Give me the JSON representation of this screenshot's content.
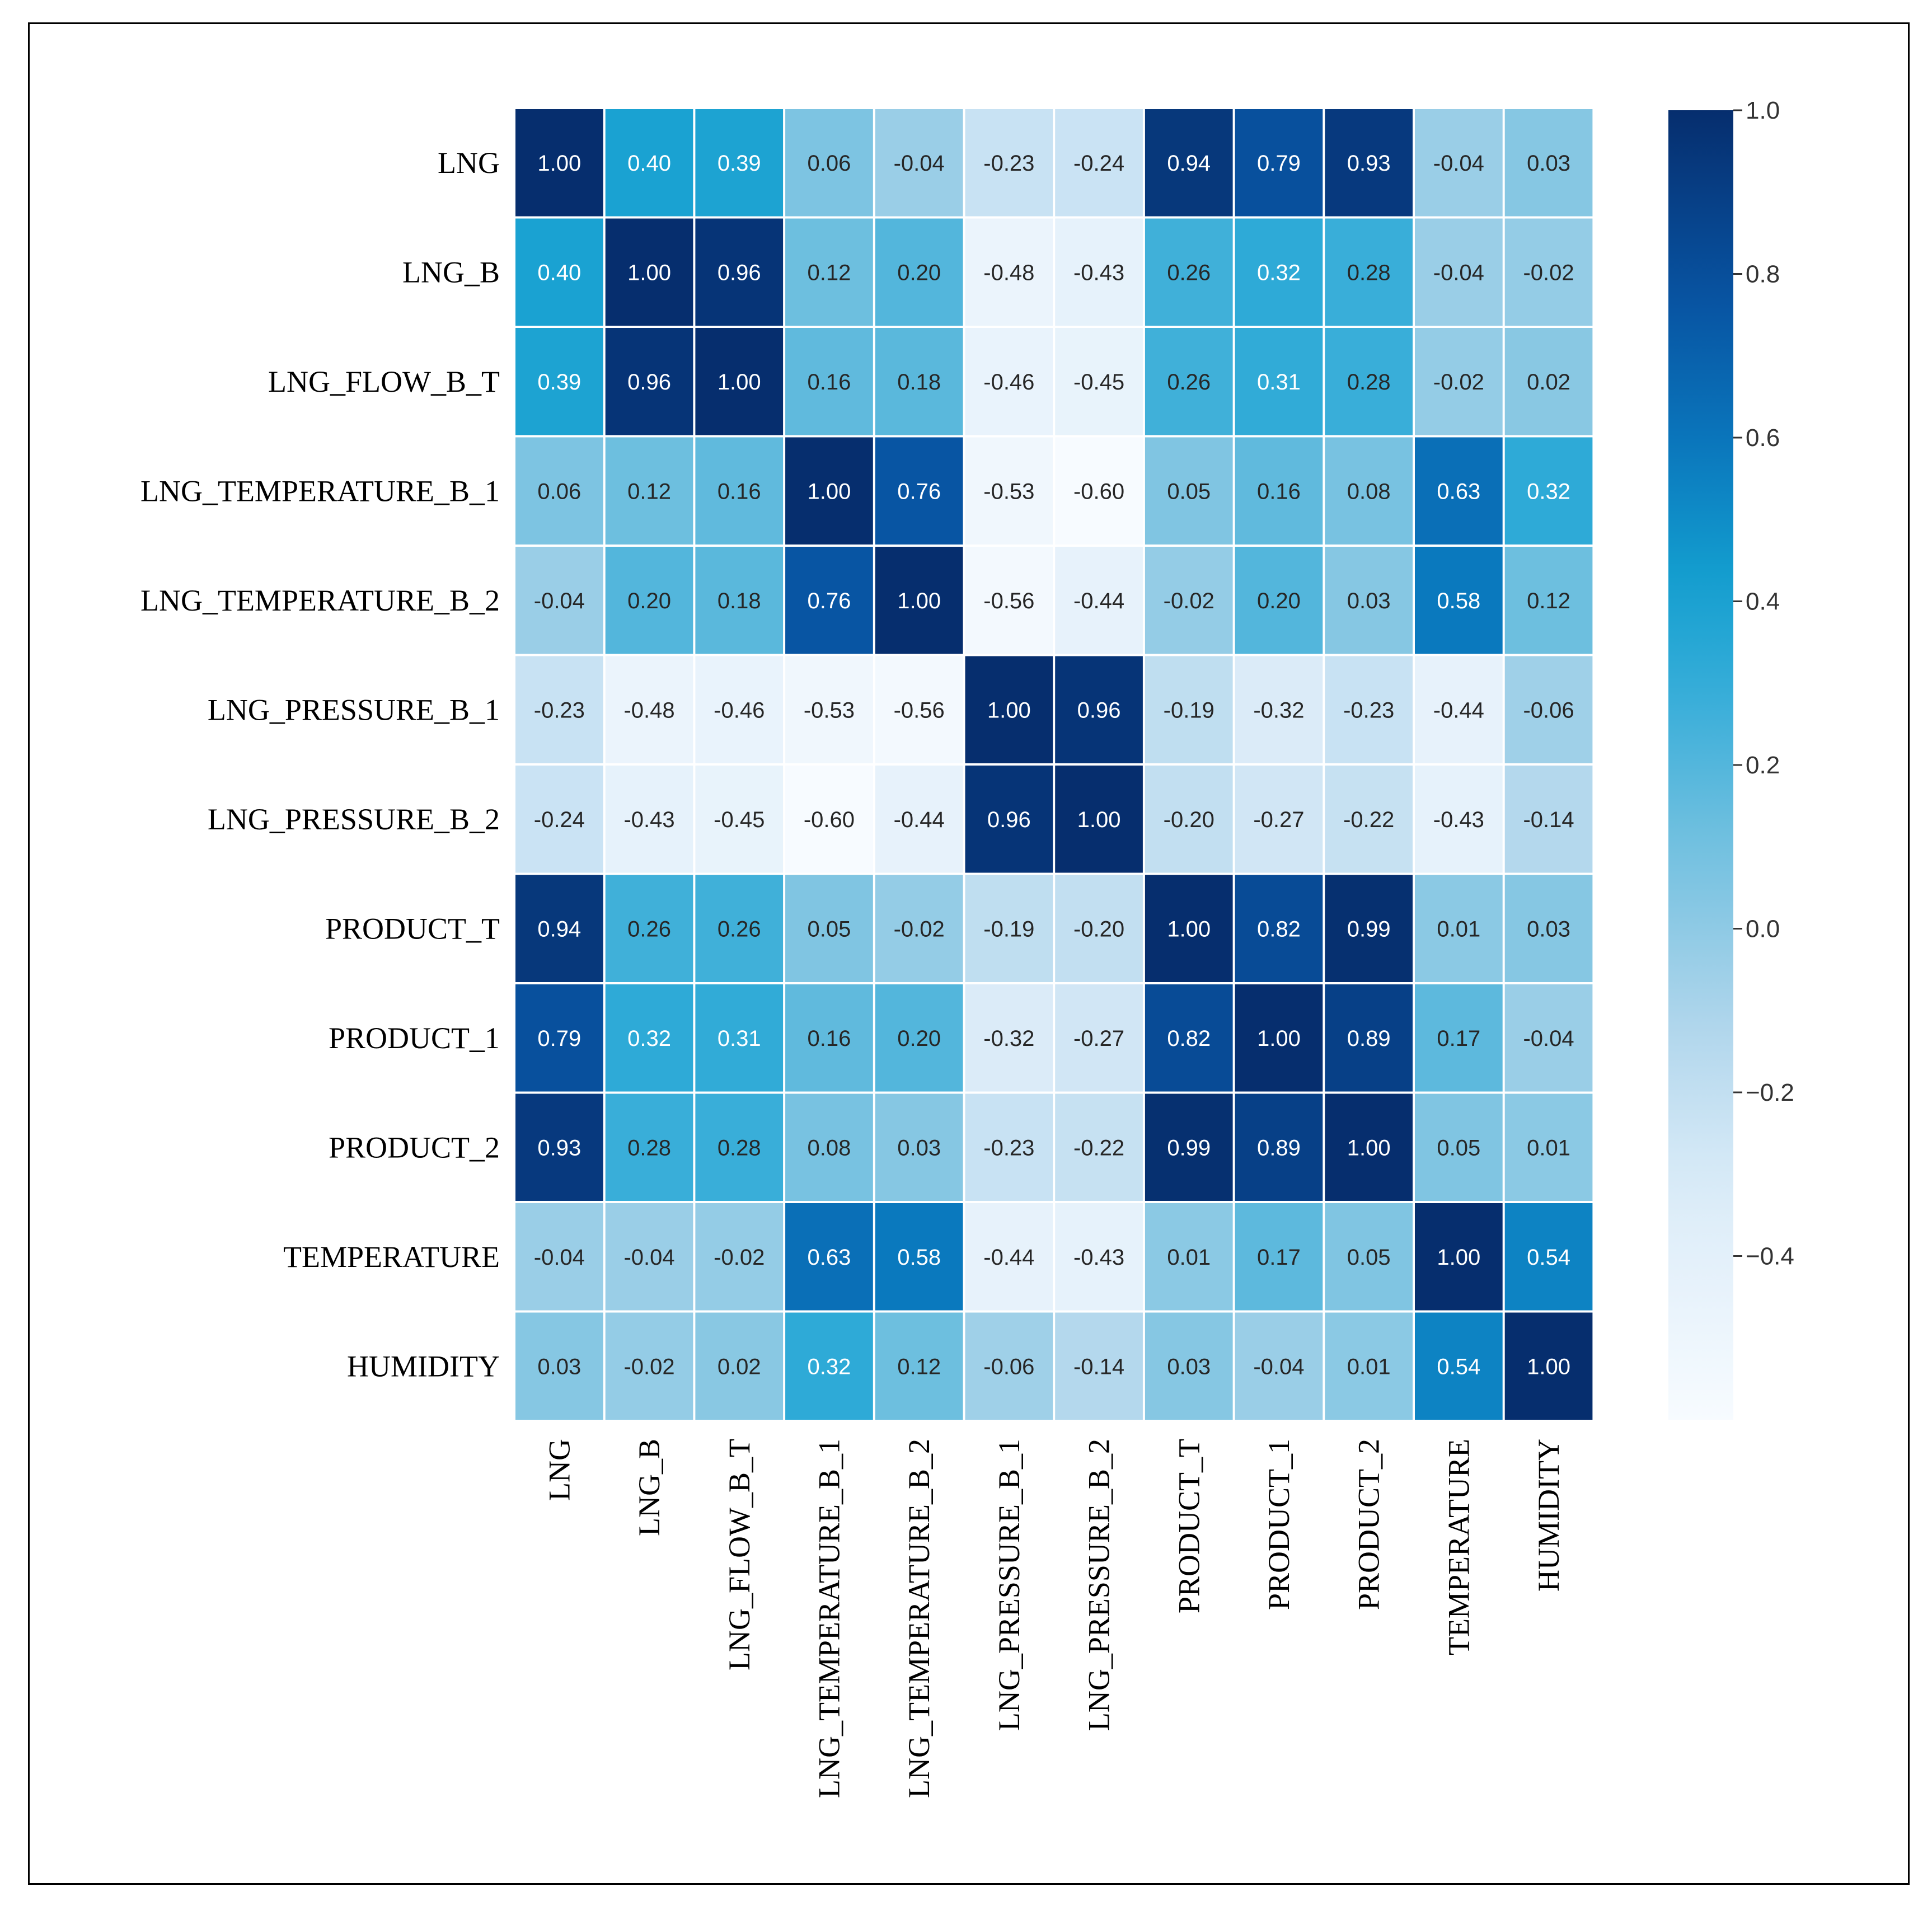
{
  "chart_data": {
    "type": "heatmap",
    "title": "",
    "xlabel": "",
    "ylabel": "",
    "colormap": "Blues",
    "vmin": -0.6,
    "vmax": 1.0,
    "annotation_format": "0.00",
    "row_labels": [
      "LNG",
      "LNG_B",
      "LNG_FLOW_B_T",
      "LNG_TEMPERATURE_B_1",
      "LNG_TEMPERATURE_B_2",
      "LNG_PRESSURE_B_1",
      "LNG_PRESSURE_B_2",
      "PRODUCT_T",
      "PRODUCT_1",
      "PRODUCT_2",
      "TEMPERATURE",
      "HUMIDITY"
    ],
    "col_labels": [
      "LNG",
      "LNG_B",
      "LNG_FLOW_B_T",
      "LNG_TEMPERATURE_B_1",
      "LNG_TEMPERATURE_B_2",
      "LNG_PRESSURE_B_1",
      "LNG_PRESSURE_B_2",
      "PRODUCT_T",
      "PRODUCT_1",
      "PRODUCT_2",
      "TEMPERATURE",
      "HUMIDITY"
    ],
    "values": [
      [
        1.0,
        0.4,
        0.39,
        0.06,
        -0.04,
        -0.23,
        -0.24,
        0.94,
        0.79,
        0.93,
        -0.04,
        0.03
      ],
      [
        0.4,
        1.0,
        0.96,
        0.12,
        0.2,
        -0.48,
        -0.43,
        0.26,
        0.32,
        0.28,
        -0.04,
        -0.02
      ],
      [
        0.39,
        0.96,
        1.0,
        0.16,
        0.18,
        -0.46,
        -0.45,
        0.26,
        0.31,
        0.28,
        -0.02,
        0.02
      ],
      [
        0.06,
        0.12,
        0.16,
        1.0,
        0.76,
        -0.53,
        -0.6,
        0.05,
        0.16,
        0.08,
        0.63,
        0.32
      ],
      [
        -0.04,
        0.2,
        0.18,
        0.76,
        1.0,
        -0.56,
        -0.44,
        -0.02,
        0.2,
        0.03,
        0.58,
        0.12
      ],
      [
        -0.23,
        -0.48,
        -0.46,
        -0.53,
        -0.56,
        1.0,
        0.96,
        -0.19,
        -0.32,
        -0.23,
        -0.44,
        -0.06
      ],
      [
        -0.24,
        -0.43,
        -0.45,
        -0.6,
        -0.44,
        0.96,
        1.0,
        -0.2,
        -0.27,
        -0.22,
        -0.43,
        -0.14
      ],
      [
        0.94,
        0.26,
        0.26,
        0.05,
        -0.02,
        -0.19,
        -0.2,
        1.0,
        0.82,
        0.99,
        0.01,
        0.03
      ],
      [
        0.79,
        0.32,
        0.31,
        0.16,
        0.2,
        -0.32,
        -0.27,
        0.82,
        1.0,
        0.89,
        0.17,
        -0.04
      ],
      [
        0.93,
        0.28,
        0.28,
        0.08,
        0.03,
        -0.23,
        -0.22,
        0.99,
        0.89,
        1.0,
        0.05,
        0.01
      ],
      [
        -0.04,
        -0.04,
        -0.02,
        0.63,
        0.58,
        -0.44,
        -0.43,
        0.01,
        0.17,
        0.05,
        1.0,
        0.54
      ],
      [
        0.03,
        -0.02,
        0.02,
        0.32,
        0.12,
        -0.06,
        -0.14,
        0.03,
        -0.04,
        0.01,
        0.54,
        1.0
      ]
    ],
    "colorbar": {
      "ticks": [
        1.0,
        0.8,
        0.6,
        0.4,
        0.2,
        0.0,
        -0.2,
        -0.4
      ],
      "tick_labels": [
        "1.0",
        "0.8",
        "0.6",
        "0.4",
        "0.2",
        "0.0",
        "−0.2",
        "−0.4"
      ]
    }
  }
}
